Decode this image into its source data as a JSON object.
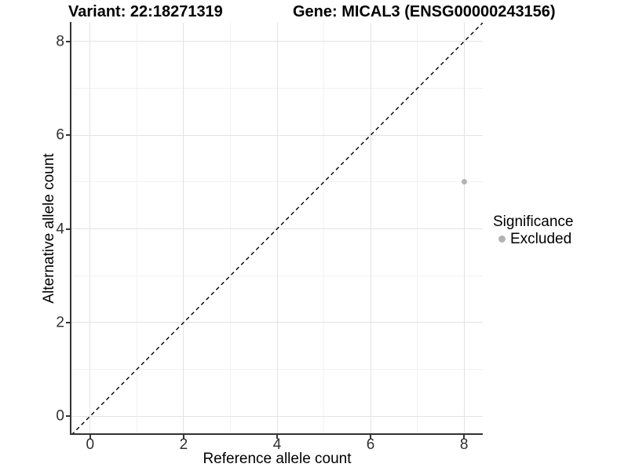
{
  "titles": {
    "left": "Variant: 22:18271319",
    "right": "Gene: MICAL3 (ENSG00000243156)"
  },
  "chart_data": {
    "type": "scatter",
    "xlabel": "Reference allele count",
    "ylabel": "Alternative allele count",
    "xlim": [
      -0.4,
      8.4
    ],
    "ylim": [
      -0.4,
      8.4
    ],
    "x_ticks": [
      0,
      2,
      4,
      6,
      8
    ],
    "y_ticks": [
      0,
      2,
      4,
      6,
      8
    ],
    "x_minor": [
      1,
      3,
      5,
      7
    ],
    "y_minor": [
      1,
      3,
      5,
      7
    ],
    "grid": true,
    "points": [
      {
        "x": 8,
        "y": 5,
        "series": "Excluded"
      }
    ],
    "reference_line": {
      "slope": 1,
      "intercept": 0,
      "style": "dashed",
      "color": "#000000"
    },
    "legend": {
      "title": "Significance",
      "position": "right",
      "entries": [
        {
          "label": "Excluded",
          "color": "#b3b3b3"
        }
      ]
    },
    "colors": {
      "point_excluded": "#b3b3b3",
      "grid_major": "#e3e3e3",
      "grid_minor": "#f1f1f1",
      "axis_line": "#333333",
      "tick_text": "#303030",
      "title_text": "#000000"
    }
  }
}
